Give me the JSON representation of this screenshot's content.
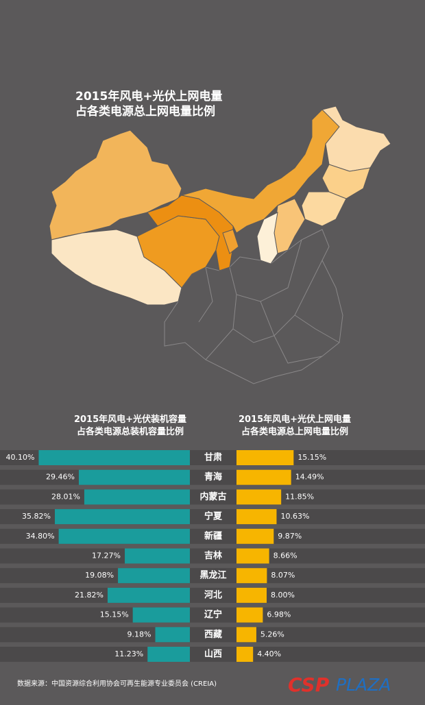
{
  "map": {
    "title": "2015年风电+光伏上网电量\n占各类电源总上网电量比例"
  },
  "chart_data": {
    "type": "butterfly",
    "categories": [
      "甘肃",
      "青海",
      "内蒙古",
      "宁夏",
      "新疆",
      "吉林",
      "黑龙江",
      "河北",
      "辽宁",
      "西藏",
      "山西"
    ],
    "series": [
      {
        "name": "2015年风电+光伏装机容量\n占各类电源总装机容量比例",
        "color": "#1a9c9c",
        "values": [
          40.1,
          29.46,
          28.01,
          35.82,
          34.8,
          17.27,
          19.08,
          21.82,
          15.15,
          9.18,
          11.23
        ],
        "value_labels": [
          "40.10%",
          "29.46%",
          "28.01%",
          "35.82%",
          "34.80%",
          "17.27%",
          "19.08%",
          "21.82%",
          "15.15%",
          "9.18%",
          "11.23%"
        ]
      },
      {
        "name": "2015年风电+光伏上网电量\n占各类电源总上网电量比例",
        "color": "#f7b500",
        "values": [
          15.15,
          14.49,
          11.85,
          10.63,
          9.87,
          8.66,
          8.07,
          8.0,
          6.98,
          5.26,
          4.4
        ],
        "value_labels": [
          "15.15%",
          "14.49%",
          "11.85%",
          "10.63%",
          "9.87%",
          "8.66%",
          "8.07%",
          "8.00%",
          "6.98%",
          "5.26%",
          "4.40%"
        ]
      }
    ]
  },
  "footer": {
    "source": "数据来源：中国资源综合利用协会可再生能源专业委员会 (CREIA)",
    "logo_a": "CSP",
    "logo_b": "PLAZA"
  }
}
